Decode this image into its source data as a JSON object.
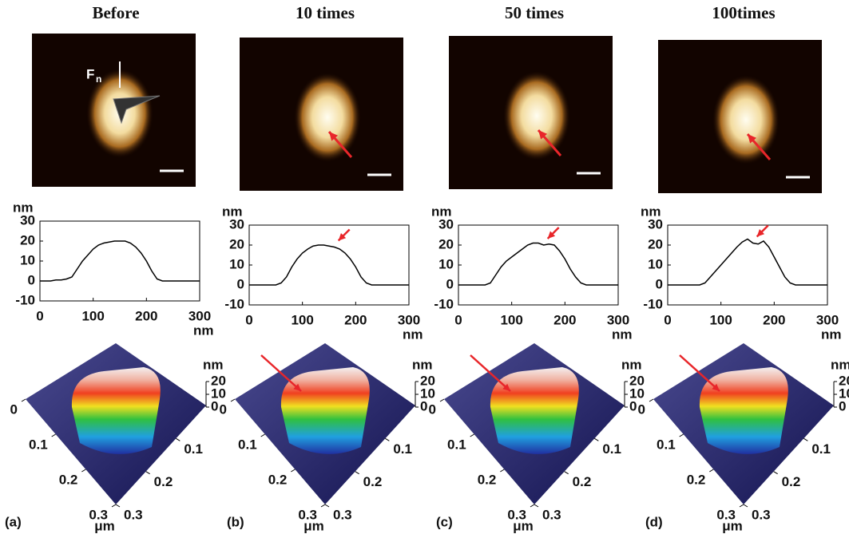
{
  "chart_data": [
    {
      "type": "line",
      "title": "Before",
      "panel_label": "(a)",
      "force_label": "F",
      "force_subscript": "n",
      "y_label": "nm",
      "x_label": "nm",
      "color": "#000000",
      "x": [
        0,
        10,
        20,
        30,
        40,
        50,
        60,
        70,
        80,
        90,
        100,
        110,
        120,
        130,
        140,
        150,
        160,
        170,
        180,
        190,
        200,
        210,
        220,
        230,
        240,
        250,
        260,
        270,
        280,
        290,
        300
      ],
      "values": [
        0,
        0,
        0,
        0.5,
        0.5,
        1,
        2,
        6,
        10,
        13,
        16,
        18,
        19,
        19.5,
        20,
        20,
        20,
        19,
        17,
        14,
        10,
        5,
        1,
        0,
        0,
        0,
        0,
        0,
        0,
        0,
        0
      ],
      "xlim": [
        0,
        300
      ],
      "ylim": [
        -10,
        30
      ],
      "xticks": [
        0,
        100,
        200,
        300
      ],
      "yticks": [
        -10,
        0,
        10,
        20,
        30
      ],
      "surface": {
        "xlim": [
          0,
          0.3
        ],
        "x_ticks": [
          0,
          0.1,
          0.2,
          0.3
        ],
        "y_ticks": [
          0.1,
          0.2,
          0.3
        ],
        "xy_label": "μm",
        "z_label": "nm",
        "zlim": [
          0,
          20
        ],
        "z_ticks": [
          0,
          10,
          20
        ]
      }
    },
    {
      "type": "line",
      "title": "10 times",
      "panel_label": "(b)",
      "y_label": "nm",
      "x_label": "nm",
      "color": "#000000",
      "x": [
        0,
        10,
        20,
        30,
        40,
        50,
        60,
        70,
        80,
        90,
        100,
        110,
        120,
        130,
        140,
        150,
        160,
        170,
        180,
        190,
        200,
        210,
        220,
        230,
        240,
        250,
        260,
        270,
        280,
        290,
        300
      ],
      "values": [
        0,
        0,
        0,
        0,
        0,
        0,
        1,
        4,
        9,
        13,
        16,
        18,
        19.5,
        20,
        20,
        19.5,
        19,
        18,
        16,
        13,
        9,
        4,
        1,
        0,
        0,
        0,
        0,
        0,
        0,
        0,
        0
      ],
      "xlim": [
        0,
        300
      ],
      "ylim": [
        -10,
        30
      ],
      "xticks": [
        0,
        100,
        200,
        300
      ],
      "yticks": [
        -10,
        0,
        10,
        20,
        30
      ],
      "surface": {
        "xlim": [
          0,
          0.3
        ],
        "x_ticks": [
          0,
          0.1,
          0.2,
          0.3
        ],
        "y_ticks": [
          0.1,
          0.2,
          0.3
        ],
        "xy_label": "μm",
        "z_label": "nm",
        "zlim": [
          0,
          20
        ],
        "z_ticks": [
          0,
          10,
          20
        ]
      }
    },
    {
      "type": "line",
      "title": "50 times",
      "panel_label": "(c)",
      "y_label": "nm",
      "x_label": "nm",
      "color": "#000000",
      "x": [
        0,
        10,
        20,
        30,
        40,
        50,
        60,
        70,
        80,
        90,
        100,
        110,
        120,
        130,
        140,
        150,
        160,
        170,
        180,
        190,
        200,
        210,
        220,
        230,
        240,
        250,
        260,
        270,
        280,
        290,
        300
      ],
      "values": [
        0,
        0,
        0,
        0,
        0,
        0,
        1,
        5,
        9,
        12,
        14,
        16,
        18,
        20,
        21,
        21,
        20,
        20.5,
        20,
        17,
        13,
        8,
        4,
        1,
        0,
        0,
        0,
        0,
        0,
        0,
        0
      ],
      "xlim": [
        0,
        300
      ],
      "ylim": [
        -10,
        30
      ],
      "xticks": [
        0,
        100,
        200,
        300
      ],
      "yticks": [
        -10,
        0,
        10,
        20,
        30
      ],
      "surface": {
        "xlim": [
          0,
          0.3
        ],
        "x_ticks": [
          0,
          0.1,
          0.2,
          0.3
        ],
        "y_ticks": [
          0.1,
          0.2,
          0.3
        ],
        "xy_label": "μm",
        "z_label": "nm",
        "zlim": [
          0,
          20
        ],
        "z_ticks": [
          0,
          10,
          20
        ]
      }
    },
    {
      "type": "line",
      "title": "100times",
      "panel_label": "(d)",
      "y_label": "nm",
      "x_label": "nm",
      "color": "#000000",
      "x": [
        0,
        10,
        20,
        30,
        40,
        50,
        60,
        70,
        80,
        90,
        100,
        110,
        120,
        130,
        140,
        150,
        160,
        170,
        180,
        190,
        200,
        210,
        220,
        230,
        240,
        250,
        260,
        270,
        280,
        290,
        300
      ],
      "values": [
        0,
        0,
        0,
        0,
        0,
        0,
        0,
        1,
        4,
        7,
        10,
        13,
        16,
        19,
        21.5,
        23,
        21,
        20.5,
        22,
        19,
        14,
        9,
        4,
        1,
        0,
        0,
        0,
        0,
        0,
        0,
        0
      ],
      "xlim": [
        0,
        300
      ],
      "ylim": [
        -10,
        30
      ],
      "xticks": [
        0,
        100,
        200,
        300
      ],
      "yticks": [
        -10,
        0,
        10,
        20,
        30
      ],
      "surface": {
        "xlim": [
          0,
          0.3
        ],
        "x_ticks": [
          0,
          0.1,
          0.2,
          0.3
        ],
        "y_ticks": [
          0.1,
          0.2,
          0.3
        ],
        "xy_label": "μm",
        "z_label": "nm",
        "zlim": [
          0,
          20
        ],
        "z_ticks": [
          0,
          10,
          20
        ]
      }
    }
  ]
}
